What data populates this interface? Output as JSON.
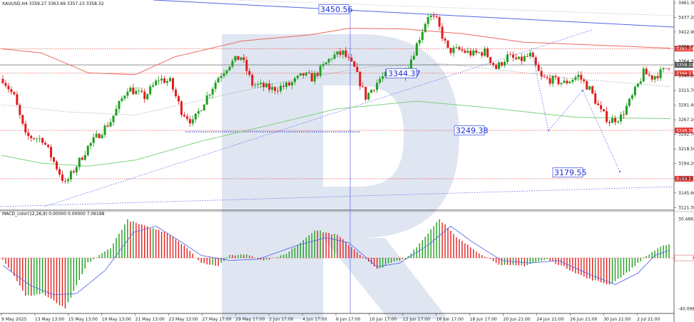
{
  "header": {
    "symbol_line": "XAUUSD,H4  3359.27 3363.69 3357.23 3358.32",
    "macd_line": "MACD_color(12,26,9) 0.00000 0.00000 7.06188"
  },
  "chart_data": {
    "type": "candlestick",
    "symbol": "XAUUSD",
    "timeframe": "H4",
    "ohlc_header": {
      "open": 3359.27,
      "high": 3363.69,
      "low": 3357.23,
      "close": 3358.32
    },
    "ylim": [
      3117,
      3466
    ],
    "price_ticks": [
      "3461.30",
      "3437.20",
      "3412.90",
      "3388.75",
      "3364.35",
      "3340.20",
      "3315.70",
      "3291.40",
      "3267.10",
      "3242.70",
      "3218.50",
      "3194.20",
      "3169.85",
      "3145.60",
      "3121.30"
    ],
    "tagged_levels": [
      {
        "label": "3385.24",
        "value": 3385.24,
        "color": "#e53935"
      },
      {
        "label": "3358.32",
        "value": 3358.32,
        "color": "#555555"
      },
      {
        "label": "3344.37",
        "value": 3344.37,
        "color": "#e53935"
      },
      {
        "label": "3249.38",
        "value": 3249.38,
        "color": "#e53935"
      },
      {
        "label": "3169.17",
        "value": 3169.17,
        "color": "#e53935"
      }
    ],
    "callouts": [
      {
        "text": "3450.56",
        "value": 3450.56
      },
      {
        "text": "3344.37",
        "value": 3344.37
      },
      {
        "text": "3249.38",
        "value": 3249.38
      },
      {
        "text": "3179.55",
        "value": 3179.55
      }
    ],
    "x_labels": [
      "9 May 2025",
      "13 May 13:00",
      "15 May 13:00",
      "19 May 13:00",
      "21 May 13:00",
      "23 May 13:00",
      "27 May 17:00",
      "29 May 17:00",
      "2 Jun 17:00",
      "4 Jun 17:00",
      "6 Jun 17:00",
      "10 Jun 17:00",
      "12 Jun 17:00",
      "16 Jun 17:00",
      "18 Jun 17:00",
      "20 Jun 21:00",
      "24 Jun 21:00",
      "26 Jun 21:00",
      "30 Jun 21:00",
      "2 Jul 21:00"
    ],
    "key_points": [
      {
        "i": 0,
        "v": 3335
      },
      {
        "i": 4,
        "v": 3305
      },
      {
        "i": 8,
        "v": 3240
      },
      {
        "i": 14,
        "v": 3235
      },
      {
        "i": 22,
        "v": 3160
      },
      {
        "i": 30,
        "v": 3222
      },
      {
        "i": 38,
        "v": 3265
      },
      {
        "i": 44,
        "v": 3320
      },
      {
        "i": 50,
        "v": 3305
      },
      {
        "i": 55,
        "v": 3335
      },
      {
        "i": 59,
        "v": 3330
      },
      {
        "i": 63,
        "v": 3282
      },
      {
        "i": 67,
        "v": 3262
      },
      {
        "i": 71,
        "v": 3298
      },
      {
        "i": 76,
        "v": 3338
      },
      {
        "i": 80,
        "v": 3360
      },
      {
        "i": 84,
        "v": 3372
      },
      {
        "i": 88,
        "v": 3326
      },
      {
        "i": 92,
        "v": 3322
      },
      {
        "i": 95,
        "v": 3318
      },
      {
        "i": 101,
        "v": 3325
      },
      {
        "i": 106,
        "v": 3342
      },
      {
        "i": 109,
        "v": 3336
      },
      {
        "i": 112,
        "v": 3350
      },
      {
        "i": 116,
        "v": 3372
      },
      {
        "i": 120,
        "v": 3378
      },
      {
        "i": 124,
        "v": 3352
      },
      {
        "i": 128,
        "v": 3305
      },
      {
        "i": 133,
        "v": 3335
      },
      {
        "i": 138,
        "v": 3348
      },
      {
        "i": 142,
        "v": 3345
      },
      {
        "i": 146,
        "v": 3392
      },
      {
        "i": 150,
        "v": 3441
      },
      {
        "i": 153,
        "v": 3431
      },
      {
        "i": 157,
        "v": 3382
      },
      {
        "i": 161,
        "v": 3383
      },
      {
        "i": 166,
        "v": 3376
      },
      {
        "i": 170,
        "v": 3380
      },
      {
        "i": 174,
        "v": 3353
      },
      {
        "i": 178,
        "v": 3372
      },
      {
        "i": 182,
        "v": 3365
      },
      {
        "i": 186,
        "v": 3374
      },
      {
        "i": 190,
        "v": 3336
      },
      {
        "i": 194,
        "v": 3333
      },
      {
        "i": 198,
        "v": 3328
      },
      {
        "i": 203,
        "v": 3340
      },
      {
        "i": 207,
        "v": 3318
      },
      {
        "i": 211,
        "v": 3280
      },
      {
        "i": 214,
        "v": 3265
      },
      {
        "i": 218,
        "v": 3272
      },
      {
        "i": 222,
        "v": 3305
      },
      {
        "i": 226,
        "v": 3345
      },
      {
        "i": 229,
        "v": 3338
      },
      {
        "i": 233,
        "v": 3348
      },
      {
        "i": 235,
        "v": 3358
      }
    ],
    "ma_red": [
      {
        "t": 0,
        "v": 3385
      },
      {
        "t": 0.06,
        "v": 3378
      },
      {
        "t": 0.13,
        "v": 3345
      },
      {
        "t": 0.2,
        "v": 3342
      },
      {
        "t": 0.26,
        "v": 3372
      },
      {
        "t": 0.36,
        "v": 3398
      },
      {
        "t": 0.46,
        "v": 3408
      },
      {
        "t": 0.52,
        "v": 3419
      },
      {
        "t": 0.6,
        "v": 3418
      },
      {
        "t": 0.69,
        "v": 3410
      },
      {
        "t": 0.78,
        "v": 3396
      },
      {
        "t": 1,
        "v": 3386
      }
    ],
    "ma_green": [
      {
        "t": 0,
        "v": 3208
      },
      {
        "t": 0.06,
        "v": 3195
      },
      {
        "t": 0.13,
        "v": 3190
      },
      {
        "t": 0.2,
        "v": 3200
      },
      {
        "t": 0.3,
        "v": 3232
      },
      {
        "t": 0.4,
        "v": 3258
      },
      {
        "t": 0.5,
        "v": 3285
      },
      {
        "t": 0.62,
        "v": 3298
      },
      {
        "t": 0.72,
        "v": 3288
      },
      {
        "t": 0.86,
        "v": 3271
      },
      {
        "t": 1,
        "v": 3269
      }
    ],
    "ma_dotted": [
      {
        "t": 0,
        "v": 3292
      },
      {
        "t": 0.1,
        "v": 3280
      },
      {
        "t": 0.2,
        "v": 3275
      },
      {
        "t": 0.3,
        "v": 3300
      },
      {
        "t": 0.42,
        "v": 3330
      },
      {
        "t": 0.55,
        "v": 3355
      },
      {
        "t": 0.66,
        "v": 3360
      },
      {
        "t": 0.76,
        "v": 3348
      },
      {
        "t": 0.86,
        "v": 3335
      },
      {
        "t": 1,
        "v": 3322
      }
    ],
    "forecast_path": [
      {
        "t": 0,
        "v": 3385
      },
      {
        "t": 0.12,
        "v": 3249
      },
      {
        "t": 0.36,
        "v": 3316
      },
      {
        "t": 0.62,
        "v": 3181
      }
    ],
    "macd": {
      "label": "MACD_color(12,26,9)",
      "ticks": [
        "30.46632",
        "0.00000",
        "-40.09831"
      ],
      "ylim": [
        -42,
        32
      ],
      "hist_points": [
        {
          "i": 0,
          "v": -1
        },
        {
          "i": 4,
          "v": -14
        },
        {
          "i": 8,
          "v": -30
        },
        {
          "i": 14,
          "v": -28
        },
        {
          "i": 22,
          "v": -40
        },
        {
          "i": 30,
          "v": -4
        },
        {
          "i": 38,
          "v": 8
        },
        {
          "i": 44,
          "v": 30
        },
        {
          "i": 50,
          "v": 25
        },
        {
          "i": 58,
          "v": 20
        },
        {
          "i": 64,
          "v": 10
        },
        {
          "i": 70,
          "v": -4
        },
        {
          "i": 76,
          "v": -6
        },
        {
          "i": 80,
          "v": 2
        },
        {
          "i": 86,
          "v": 3
        },
        {
          "i": 92,
          "v": -2
        },
        {
          "i": 100,
          "v": 3
        },
        {
          "i": 110,
          "v": 22
        },
        {
          "i": 118,
          "v": 18
        },
        {
          "i": 126,
          "v": 3
        },
        {
          "i": 132,
          "v": -9
        },
        {
          "i": 138,
          "v": -3
        },
        {
          "i": 142,
          "v": -1
        },
        {
          "i": 148,
          "v": 14
        },
        {
          "i": 154,
          "v": 31
        },
        {
          "i": 160,
          "v": 16
        },
        {
          "i": 168,
          "v": 4
        },
        {
          "i": 176,
          "v": -6
        },
        {
          "i": 184,
          "v": -6
        },
        {
          "i": 192,
          "v": -1
        },
        {
          "i": 198,
          "v": -7
        },
        {
          "i": 206,
          "v": -16
        },
        {
          "i": 214,
          "v": -21
        },
        {
          "i": 220,
          "v": -12
        },
        {
          "i": 226,
          "v": 0
        },
        {
          "i": 232,
          "v": 9
        },
        {
          "i": 235,
          "v": 10
        }
      ],
      "signal_points": [
        {
          "i": 0,
          "v": -6
        },
        {
          "i": 10,
          "v": -22
        },
        {
          "i": 18,
          "v": -29
        },
        {
          "i": 26,
          "v": -28
        },
        {
          "i": 36,
          "v": -10
        },
        {
          "i": 46,
          "v": 20
        },
        {
          "i": 54,
          "v": 25
        },
        {
          "i": 62,
          "v": 14
        },
        {
          "i": 70,
          "v": 2
        },
        {
          "i": 80,
          "v": -2
        },
        {
          "i": 90,
          "v": -1
        },
        {
          "i": 104,
          "v": 10
        },
        {
          "i": 114,
          "v": 16
        },
        {
          "i": 122,
          "v": 12
        },
        {
          "i": 132,
          "v": -7
        },
        {
          "i": 140,
          "v": -4
        },
        {
          "i": 150,
          "v": 10
        },
        {
          "i": 158,
          "v": 25
        },
        {
          "i": 166,
          "v": 12
        },
        {
          "i": 176,
          "v": -2
        },
        {
          "i": 186,
          "v": -4
        },
        {
          "i": 196,
          "v": -2
        },
        {
          "i": 206,
          "v": -12
        },
        {
          "i": 216,
          "v": -21
        },
        {
          "i": 224,
          "v": -12
        },
        {
          "i": 230,
          "v": 2
        },
        {
          "i": 235,
          "v": 6
        }
      ]
    },
    "colors": {
      "bull": "#1e9e1e",
      "bear": "#e21c1c",
      "ma_red": "#ec6a5e",
      "ma_green": "#7fd07f",
      "ma_dotted": "#7a8a9a",
      "trend_line": "#5563e8",
      "forecast": "#6d7bf0",
      "callout_text": "#1a2fd4",
      "hline": "#e05050",
      "watermark": "#dfe6f1"
    }
  }
}
